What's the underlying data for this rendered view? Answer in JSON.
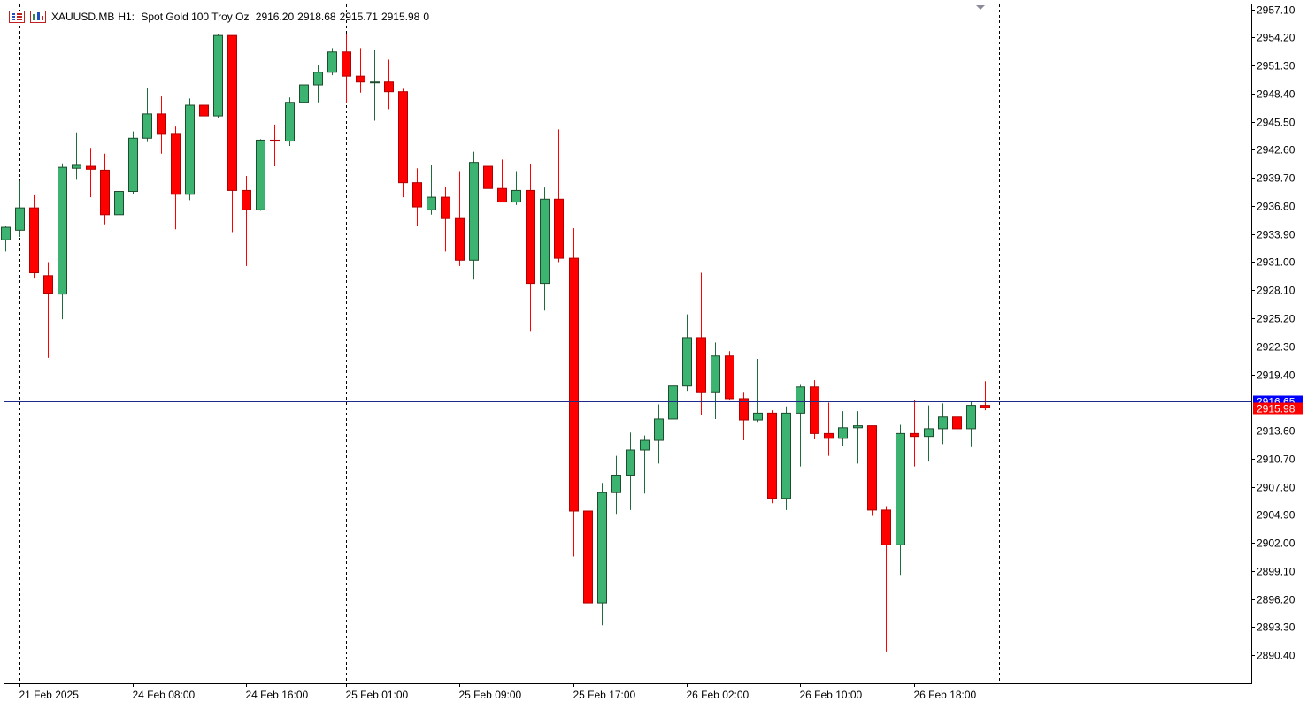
{
  "header": {
    "symbol": "XAUUSD.MB",
    "timeframe": "H1:",
    "description": "Spot Gold 100 Troy Oz",
    "open": "2916.20",
    "high": "2918.68",
    "low": "2915.71",
    "close": "2915.98",
    "volume": "0",
    "icons": [
      "chart-list-icon",
      "chart-settings-icon"
    ]
  },
  "colors": {
    "bull": "#3cb371",
    "bear": "#ff0000",
    "outline": "#000000",
    "ask_line": "#1d2a8a",
    "bid_line": "#e01010",
    "ask_label_bg": "#0000ff",
    "bid_label_bg": "#ff0000",
    "grid_separator": "#000000",
    "axis": "#000000"
  },
  "chart_data": {
    "type": "candlestick",
    "symbol": "XAUUSD.MB",
    "timeframe": "H1",
    "ylim": [
      2887.5,
      2957.7
    ],
    "y_ticks": [
      "2957.10",
      "2954.20",
      "2951.30",
      "2948.40",
      "2945.50",
      "2942.60",
      "2939.70",
      "2936.80",
      "2933.90",
      "2931.00",
      "2928.10",
      "2925.20",
      "2922.30",
      "2919.40",
      "2913.60",
      "2910.70",
      "2907.80",
      "2904.90",
      "2902.00",
      "2899.10",
      "2896.20",
      "2893.30",
      "2890.40"
    ],
    "x_labels": [
      {
        "index": 1,
        "label": "21 Feb 2025"
      },
      {
        "index": 9,
        "label": "24 Feb 08:00"
      },
      {
        "index": 17,
        "label": "24 Feb 16:00"
      },
      {
        "index": 24,
        "label": "25 Feb 01:00"
      },
      {
        "index": 32,
        "label": "25 Feb 09:00"
      },
      {
        "index": 40,
        "label": "25 Feb 17:00"
      },
      {
        "index": 48,
        "label": "26 Feb 02:00"
      },
      {
        "index": 56,
        "label": "26 Feb 10:00"
      },
      {
        "index": 64,
        "label": "26 Feb 18:00"
      }
    ],
    "day_separators": [
      1,
      24,
      47,
      70
    ],
    "ask_price": "2916.65",
    "bid_price": "2915.98",
    "candles": [
      {
        "o": 2933.3,
        "h": 2934.7,
        "l": 2932.1,
        "c": 2934.6
      },
      {
        "o": 2934.3,
        "h": 2939.4,
        "l": 2933.6,
        "c": 2936.6
      },
      {
        "o": 2936.6,
        "h": 2937.9,
        "l": 2929.3,
        "c": 2929.9
      },
      {
        "o": 2929.6,
        "h": 2931.0,
        "l": 2921.1,
        "c": 2927.8
      },
      {
        "o": 2927.7,
        "h": 2941.2,
        "l": 2925.1,
        "c": 2940.8
      },
      {
        "o": 2940.7,
        "h": 2944.4,
        "l": 2939.5,
        "c": 2941.0
      },
      {
        "o": 2940.9,
        "h": 2942.8,
        "l": 2937.7,
        "c": 2940.6
      },
      {
        "o": 2940.5,
        "h": 2942.2,
        "l": 2934.9,
        "c": 2935.9
      },
      {
        "o": 2935.9,
        "h": 2941.8,
        "l": 2935.0,
        "c": 2938.3
      },
      {
        "o": 2938.3,
        "h": 2944.5,
        "l": 2938.0,
        "c": 2943.8
      },
      {
        "o": 2943.8,
        "h": 2949.0,
        "l": 2943.4,
        "c": 2946.3
      },
      {
        "o": 2946.3,
        "h": 2948.1,
        "l": 2942.2,
        "c": 2944.2
      },
      {
        "o": 2944.2,
        "h": 2945.0,
        "l": 2934.4,
        "c": 2938.0
      },
      {
        "o": 2938.0,
        "h": 2947.9,
        "l": 2937.4,
        "c": 2947.2
      },
      {
        "o": 2947.2,
        "h": 2948.2,
        "l": 2945.4,
        "c": 2946.1
      },
      {
        "o": 2946.1,
        "h": 2954.6,
        "l": 2945.9,
        "c": 2954.4
      },
      {
        "o": 2954.4,
        "h": 2954.4,
        "l": 2934.1,
        "c": 2938.4
      },
      {
        "o": 2938.4,
        "h": 2939.9,
        "l": 2930.6,
        "c": 2936.4
      },
      {
        "o": 2936.4,
        "h": 2943.7,
        "l": 2936.3,
        "c": 2943.6
      },
      {
        "o": 2943.6,
        "h": 2945.2,
        "l": 2940.9,
        "c": 2943.5
      },
      {
        "o": 2943.5,
        "h": 2948.0,
        "l": 2943.0,
        "c": 2947.5
      },
      {
        "o": 2947.5,
        "h": 2949.7,
        "l": 2946.7,
        "c": 2949.3
      },
      {
        "o": 2949.3,
        "h": 2951.4,
        "l": 2947.5,
        "c": 2950.6
      },
      {
        "o": 2950.6,
        "h": 2953.1,
        "l": 2950.3,
        "c": 2952.7
      },
      {
        "o": 2952.7,
        "h": 2954.6,
        "l": 2947.4,
        "c": 2950.2
      },
      {
        "o": 2950.2,
        "h": 2953.1,
        "l": 2948.5,
        "c": 2949.6
      },
      {
        "o": 2949.6,
        "h": 2952.9,
        "l": 2945.6,
        "c": 2949.6
      },
      {
        "o": 2949.6,
        "h": 2951.9,
        "l": 2946.8,
        "c": 2948.6
      },
      {
        "o": 2948.6,
        "h": 2948.9,
        "l": 2937.7,
        "c": 2939.2
      },
      {
        "o": 2939.2,
        "h": 2940.7,
        "l": 2934.7,
        "c": 2936.7
      },
      {
        "o": 2936.4,
        "h": 2941.0,
        "l": 2935.9,
        "c": 2937.7
      },
      {
        "o": 2937.7,
        "h": 2938.8,
        "l": 2932.1,
        "c": 2935.5
      },
      {
        "o": 2935.5,
        "h": 2940.4,
        "l": 2930.6,
        "c": 2931.2
      },
      {
        "o": 2931.2,
        "h": 2942.4,
        "l": 2929.2,
        "c": 2941.3
      },
      {
        "o": 2940.9,
        "h": 2941.6,
        "l": 2937.5,
        "c": 2938.6
      },
      {
        "o": 2938.6,
        "h": 2941.6,
        "l": 2937.2,
        "c": 2937.2
      },
      {
        "o": 2937.2,
        "h": 2940.4,
        "l": 2936.9,
        "c": 2938.4
      },
      {
        "o": 2938.4,
        "h": 2941.1,
        "l": 2923.9,
        "c": 2928.8
      },
      {
        "o": 2928.8,
        "h": 2938.7,
        "l": 2926.0,
        "c": 2937.5
      },
      {
        "o": 2937.5,
        "h": 2944.7,
        "l": 2931.0,
        "c": 2931.4
      },
      {
        "o": 2931.4,
        "h": 2934.5,
        "l": 2900.6,
        "c": 2905.3
      },
      {
        "o": 2905.3,
        "h": 2906.2,
        "l": 2888.4,
        "c": 2895.8
      },
      {
        "o": 2895.8,
        "h": 2908.2,
        "l": 2893.5,
        "c": 2907.2
      },
      {
        "o": 2907.2,
        "h": 2911.0,
        "l": 2905.0,
        "c": 2909.0
      },
      {
        "o": 2909.0,
        "h": 2913.4,
        "l": 2905.4,
        "c": 2911.6
      },
      {
        "o": 2911.6,
        "h": 2913.1,
        "l": 2907.1,
        "c": 2912.6
      },
      {
        "o": 2912.6,
        "h": 2916.3,
        "l": 2910.2,
        "c": 2914.8
      },
      {
        "o": 2914.8,
        "h": 2918.6,
        "l": 2913.5,
        "c": 2918.2
      },
      {
        "o": 2918.2,
        "h": 2925.6,
        "l": 2917.7,
        "c": 2923.2
      },
      {
        "o": 2923.2,
        "h": 2929.9,
        "l": 2915.2,
        "c": 2917.6
      },
      {
        "o": 2917.6,
        "h": 2922.7,
        "l": 2914.8,
        "c": 2921.3
      },
      {
        "o": 2921.3,
        "h": 2921.8,
        "l": 2916.7,
        "c": 2916.9
      },
      {
        "o": 2916.9,
        "h": 2917.6,
        "l": 2912.6,
        "c": 2914.7
      },
      {
        "o": 2914.7,
        "h": 2921.0,
        "l": 2914.5,
        "c": 2915.4
      },
      {
        "o": 2915.4,
        "h": 2915.7,
        "l": 2906.1,
        "c": 2906.6
      },
      {
        "o": 2906.6,
        "h": 2916.1,
        "l": 2905.4,
        "c": 2915.4
      },
      {
        "o": 2915.4,
        "h": 2918.4,
        "l": 2909.9,
        "c": 2918.1
      },
      {
        "o": 2918.1,
        "h": 2918.8,
        "l": 2912.7,
        "c": 2913.3
      },
      {
        "o": 2913.3,
        "h": 2916.5,
        "l": 2911.0,
        "c": 2912.8
      },
      {
        "o": 2912.8,
        "h": 2915.6,
        "l": 2912.0,
        "c": 2913.9
      },
      {
        "o": 2913.9,
        "h": 2915.6,
        "l": 2910.2,
        "c": 2914.1
      },
      {
        "o": 2914.1,
        "h": 2914.1,
        "l": 2904.8,
        "c": 2905.4
      },
      {
        "o": 2905.4,
        "h": 2905.8,
        "l": 2890.8,
        "c": 2901.8
      },
      {
        "o": 2901.8,
        "h": 2914.2,
        "l": 2898.7,
        "c": 2913.3
      },
      {
        "o": 2913.3,
        "h": 2916.8,
        "l": 2909.9,
        "c": 2913.0
      },
      {
        "o": 2913.0,
        "h": 2916.2,
        "l": 2910.4,
        "c": 2913.8
      },
      {
        "o": 2913.8,
        "h": 2916.4,
        "l": 2912.2,
        "c": 2915.0
      },
      {
        "o": 2915.0,
        "h": 2915.8,
        "l": 2913.2,
        "c": 2913.8
      },
      {
        "o": 2913.8,
        "h": 2916.6,
        "l": 2911.9,
        "c": 2916.2
      },
      {
        "o": 2916.2,
        "h": 2918.7,
        "l": 2915.7,
        "c": 2915.98
      }
    ]
  }
}
